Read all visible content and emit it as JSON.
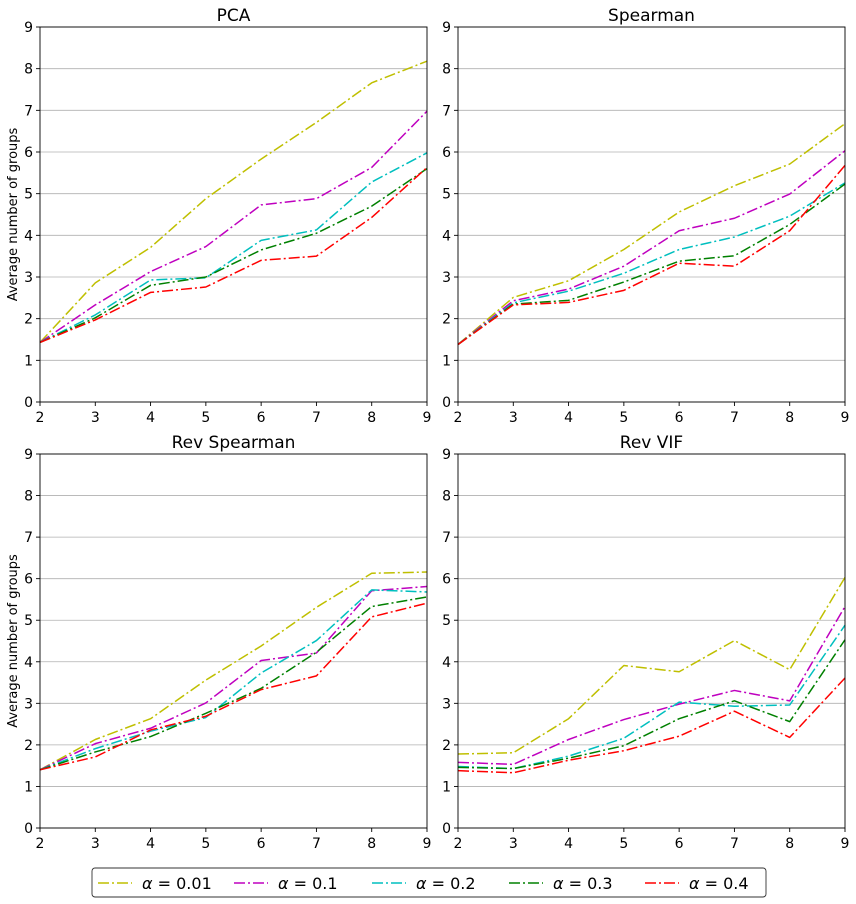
{
  "figure": {
    "legend_placement": "bottom-center",
    "grid": "horizontal"
  },
  "legend": [
    {
      "symbol": "α",
      "rest": " = 0.01",
      "color": "#bfbf00"
    },
    {
      "symbol": "α",
      "rest": " = 0.1",
      "color": "#bf00bf"
    },
    {
      "symbol": "α",
      "rest": " = 0.2",
      "color": "#00bfbf"
    },
    {
      "symbol": "α",
      "rest": " = 0.3",
      "color": "#008000"
    },
    {
      "symbol": "α",
      "rest": " = 0.4",
      "color": "#ff0000"
    }
  ],
  "chart_data": [
    {
      "type": "line",
      "title": "PCA",
      "xlabel": "",
      "ylabel": "Average number of groups",
      "x": [
        2,
        3,
        4,
        5,
        6,
        7,
        8,
        9
      ],
      "xlim": [
        2,
        9
      ],
      "ylim": [
        0,
        9
      ],
      "xticks": [
        "2",
        "3",
        "4",
        "5",
        "6",
        "7",
        "8",
        "9"
      ],
      "yticks": [
        "0",
        "1",
        "2",
        "3",
        "4",
        "5",
        "6",
        "7",
        "8",
        "9"
      ],
      "series": [
        {
          "name": "α = 0.01",
          "color": "#bfbf00",
          "values": [
            1.43,
            2.86,
            3.71,
            4.88,
            5.83,
            6.71,
            7.66,
            8.18
          ]
        },
        {
          "name": "α = 0.1",
          "color": "#bf00bf",
          "values": [
            1.43,
            2.33,
            3.13,
            3.73,
            4.73,
            4.88,
            5.63,
            6.98
          ]
        },
        {
          "name": "α = 0.2",
          "color": "#00bfbf",
          "values": [
            1.43,
            2.09,
            2.93,
            2.98,
            3.88,
            4.13,
            5.28,
            5.98
          ]
        },
        {
          "name": "α = 0.3",
          "color": "#008000",
          "values": [
            1.43,
            2.02,
            2.8,
            3.0,
            3.65,
            4.05,
            4.7,
            5.6
          ]
        },
        {
          "name": "α = 0.4",
          "color": "#ff0000",
          "values": [
            1.43,
            1.97,
            2.63,
            2.76,
            3.4,
            3.5,
            4.43,
            5.63
          ]
        }
      ]
    },
    {
      "type": "line",
      "title": "Spearman",
      "xlabel": "",
      "ylabel": "",
      "x": [
        2,
        3,
        4,
        5,
        6,
        7,
        8,
        9
      ],
      "xlim": [
        2,
        9
      ],
      "ylim": [
        0,
        9
      ],
      "xticks": [
        "2",
        "3",
        "4",
        "5",
        "6",
        "7",
        "8",
        "9"
      ],
      "yticks": [
        "0",
        "1",
        "2",
        "3",
        "4",
        "5",
        "6",
        "7",
        "8",
        "9"
      ],
      "series": [
        {
          "name": "α = 0.01",
          "color": "#bfbf00",
          "values": [
            1.38,
            2.51,
            2.91,
            3.66,
            4.56,
            5.19,
            5.71,
            6.68
          ]
        },
        {
          "name": "α = 0.1",
          "color": "#bf00bf",
          "values": [
            1.38,
            2.43,
            2.71,
            3.26,
            4.11,
            4.41,
            4.99,
            6.03
          ]
        },
        {
          "name": "α = 0.2",
          "color": "#00bfbf",
          "values": [
            1.38,
            2.38,
            2.66,
            3.09,
            3.66,
            3.96,
            4.46,
            5.26
          ]
        },
        {
          "name": "α = 0.3",
          "color": "#008000",
          "values": [
            1.38,
            2.35,
            2.44,
            2.88,
            3.38,
            3.51,
            4.26,
            5.23
          ]
        },
        {
          "name": "α = 0.4",
          "color": "#ff0000",
          "values": [
            1.38,
            2.33,
            2.39,
            2.68,
            3.33,
            3.26,
            4.11,
            5.68
          ]
        }
      ]
    },
    {
      "type": "line",
      "title": "Rev Spearman",
      "xlabel": "",
      "ylabel": "Average number of groups",
      "x": [
        2,
        3,
        4,
        5,
        6,
        7,
        8,
        9
      ],
      "xlim": [
        2,
        9
      ],
      "ylim": [
        0,
        9
      ],
      "xticks": [
        "2",
        "3",
        "4",
        "5",
        "6",
        "7",
        "8",
        "9"
      ],
      "yticks": [
        "0",
        "1",
        "2",
        "3",
        "4",
        "5",
        "6",
        "7",
        "8",
        "9"
      ],
      "series": [
        {
          "name": "α = 0.01",
          "color": "#bfbf00",
          "values": [
            1.4,
            2.13,
            2.63,
            3.56,
            4.38,
            5.31,
            6.13,
            6.16
          ]
        },
        {
          "name": "α = 0.1",
          "color": "#bf00bf",
          "values": [
            1.4,
            2.03,
            2.4,
            3.01,
            4.03,
            4.21,
            5.71,
            5.81
          ]
        },
        {
          "name": "α = 0.2",
          "color": "#00bfbf",
          "values": [
            1.4,
            1.91,
            2.33,
            2.66,
            3.73,
            4.51,
            5.73,
            5.68
          ]
        },
        {
          "name": "α = 0.3",
          "color": "#008000",
          "values": [
            1.4,
            1.83,
            2.2,
            2.76,
            3.36,
            4.23,
            5.33,
            5.56
          ]
        },
        {
          "name": "α = 0.4",
          "color": "#ff0000",
          "values": [
            1.4,
            1.71,
            2.36,
            2.69,
            3.33,
            3.66,
            5.08,
            5.41
          ]
        }
      ]
    },
    {
      "type": "line",
      "title": "Rev VIF",
      "xlabel": "",
      "ylabel": "",
      "x": [
        2,
        3,
        4,
        5,
        6,
        7,
        8,
        9
      ],
      "xlim": [
        2,
        9
      ],
      "ylim": [
        0,
        9
      ],
      "xticks": [
        "2",
        "3",
        "4",
        "5",
        "6",
        "7",
        "8",
        "9"
      ],
      "yticks": [
        "0",
        "1",
        "2",
        "3",
        "4",
        "5",
        "6",
        "7",
        "8",
        "9"
      ],
      "series": [
        {
          "name": "α = 0.01",
          "color": "#bfbf00",
          "values": [
            1.78,
            1.81,
            2.63,
            3.91,
            3.76,
            4.51,
            3.81,
            6.03
          ]
        },
        {
          "name": "α = 0.1",
          "color": "#bf00bf",
          "values": [
            1.58,
            1.53,
            2.13,
            2.61,
            2.98,
            3.31,
            3.06,
            5.33
          ]
        },
        {
          "name": "α = 0.2",
          "color": "#00bfbf",
          "values": [
            1.48,
            1.43,
            1.73,
            2.16,
            3.03,
            2.93,
            2.96,
            4.88
          ]
        },
        {
          "name": "α = 0.3",
          "color": "#008000",
          "values": [
            1.46,
            1.43,
            1.68,
            1.98,
            2.63,
            3.06,
            2.56,
            4.53
          ]
        },
        {
          "name": "α = 0.4",
          "color": "#ff0000",
          "values": [
            1.38,
            1.33,
            1.63,
            1.86,
            2.21,
            2.81,
            2.18,
            3.61
          ]
        }
      ]
    }
  ]
}
